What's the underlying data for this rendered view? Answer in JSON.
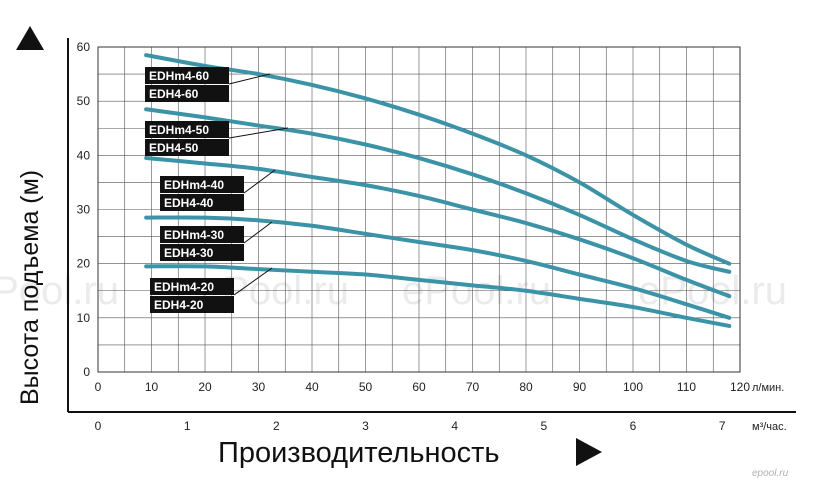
{
  "chart_data": {
    "type": "line",
    "ylabel": "Высота подъема (м)",
    "xlabel": "Производительность",
    "x_unit": "л/мин.",
    "x2_unit": "м³/час.",
    "xlim": [
      0,
      120
    ],
    "ylim": [
      0,
      60
    ],
    "x_ticks": [
      0,
      10,
      20,
      30,
      40,
      50,
      60,
      70,
      80,
      90,
      100,
      110,
      120
    ],
    "x2_ticks": [
      0,
      1,
      2,
      3,
      4,
      5,
      6,
      7
    ],
    "y_ticks": [
      0,
      10,
      20,
      30,
      40,
      50,
      60
    ],
    "grid": true,
    "series_color": "#3a93a6",
    "series": [
      {
        "name": "EDHm4-60 / EDH4-60",
        "labels": [
          "EDHm4-60",
          "EDH4-60"
        ],
        "x": [
          9,
          20,
          30,
          40,
          50,
          60,
          70,
          80,
          90,
          100,
          110,
          118
        ],
        "y": [
          58.5,
          56.5,
          55,
          53,
          50.5,
          47.5,
          44,
          40,
          35,
          29,
          23.5,
          20
        ]
      },
      {
        "name": "EDHm4-50 / EDH4-50",
        "labels": [
          "EDHm4-50",
          "EDH4-50"
        ],
        "x": [
          9,
          20,
          30,
          40,
          50,
          60,
          70,
          80,
          90,
          100,
          110,
          118
        ],
        "y": [
          48.5,
          47,
          45.5,
          44,
          42,
          39.5,
          36.5,
          33,
          29,
          24.5,
          20.5,
          18.5
        ]
      },
      {
        "name": "EDHm4-40 / EDH4-40",
        "labels": [
          "EDHm4-40",
          "EDH4-40"
        ],
        "x": [
          9,
          20,
          30,
          40,
          50,
          60,
          70,
          80,
          90,
          100,
          110,
          118
        ],
        "y": [
          39.5,
          38.5,
          37.5,
          36,
          34.5,
          32.5,
          30,
          27.5,
          24.5,
          21,
          17,
          14
        ]
      },
      {
        "name": "EDHm4-30 / EDH4-30",
        "labels": [
          "EDHm4-30",
          "EDH4-30"
        ],
        "x": [
          9,
          20,
          30,
          40,
          50,
          60,
          70,
          80,
          90,
          100,
          110,
          118
        ],
        "y": [
          28.5,
          28.5,
          28,
          27,
          25.5,
          24,
          22.5,
          20.5,
          18,
          15.5,
          12.5,
          10
        ]
      },
      {
        "name": "EDHm4-20 / EDH4-20",
        "labels": [
          "EDHm4-20",
          "EDH4-20"
        ],
        "x": [
          9,
          20,
          30,
          40,
          50,
          60,
          70,
          80,
          90,
          100,
          110,
          118
        ],
        "y": [
          19.5,
          19.5,
          19,
          18.5,
          18,
          17,
          16,
          15,
          13.5,
          12,
          10,
          8.5
        ]
      }
    ]
  },
  "watermark": "ePool.ru",
  "corner_mark": "epool.ru"
}
